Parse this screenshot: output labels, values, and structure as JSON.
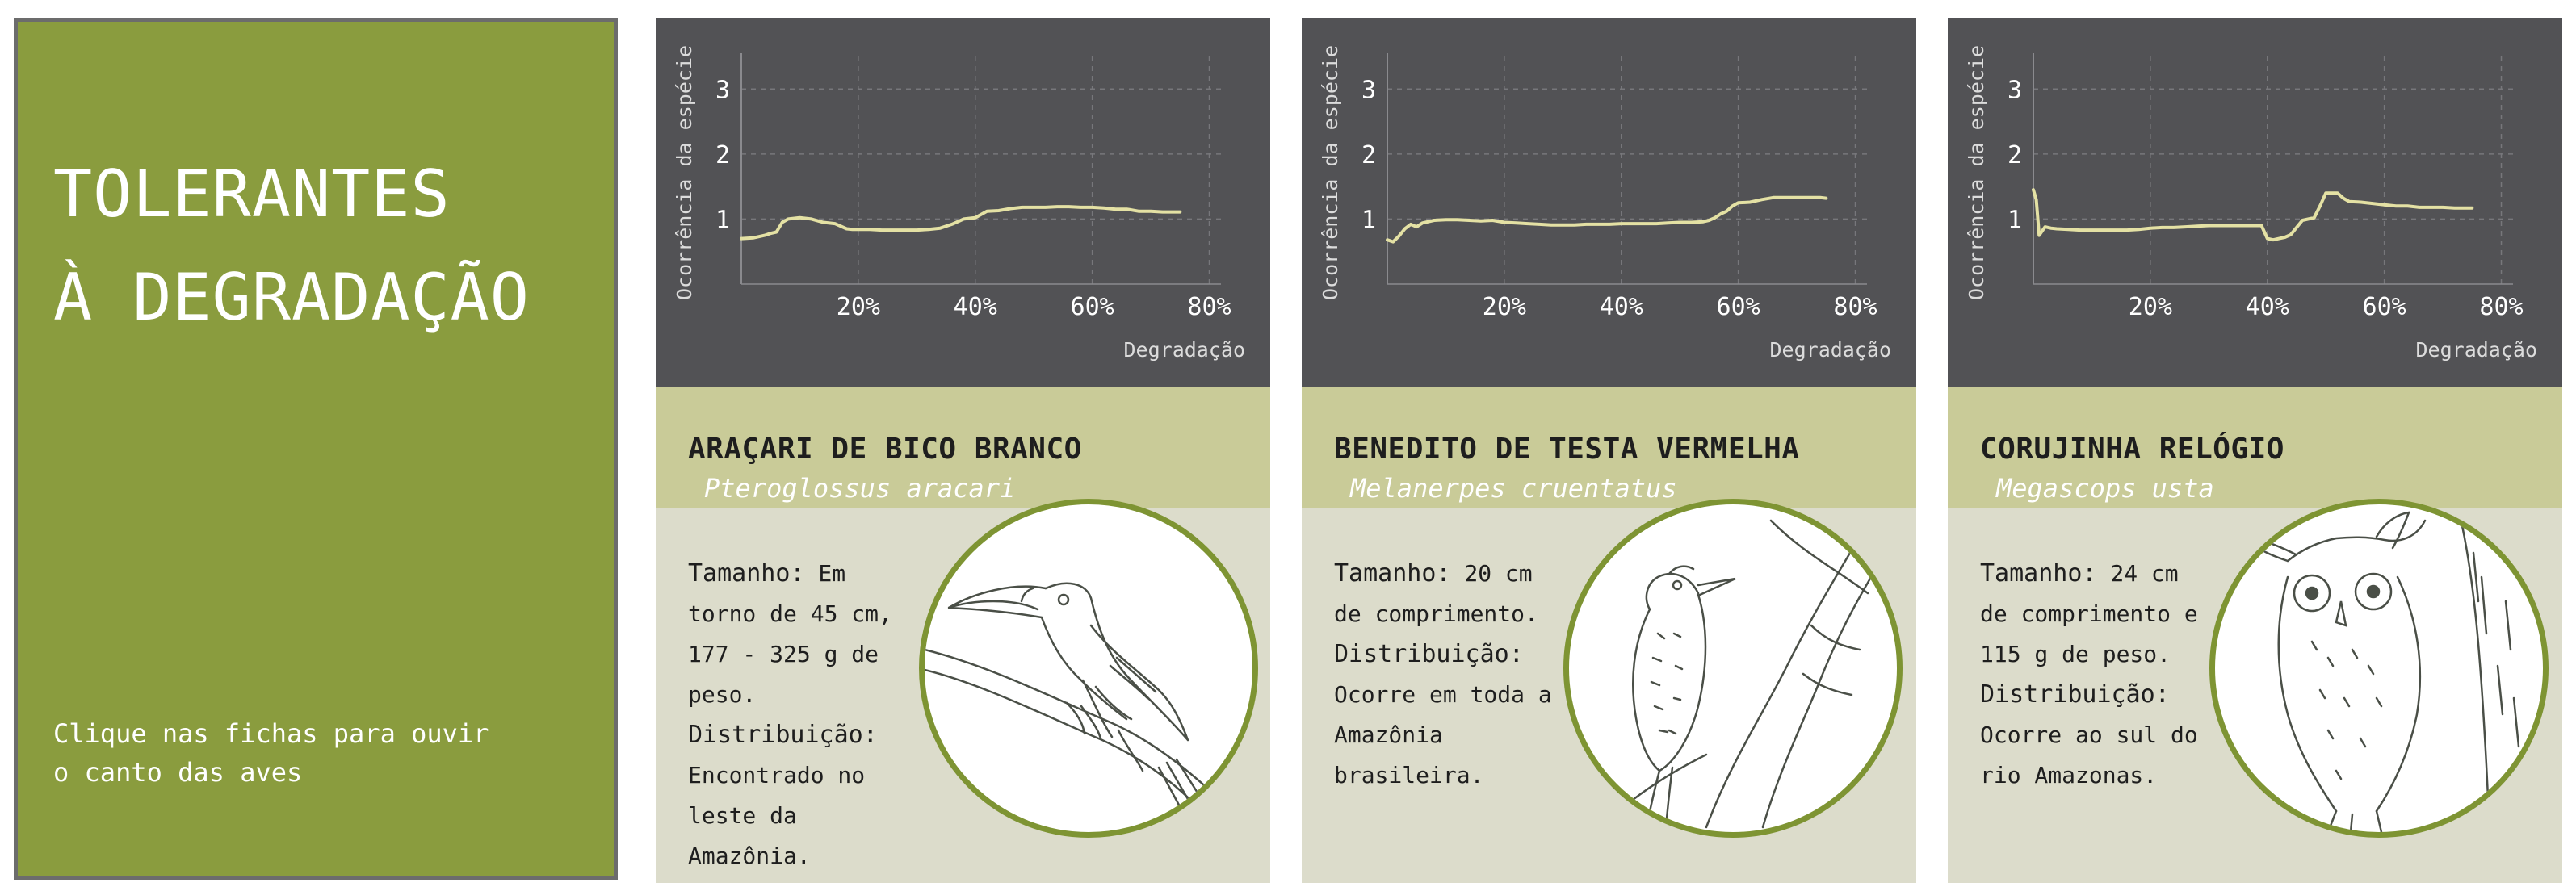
{
  "intro": {
    "title_line1": "TOLERANTES",
    "title_line2": "À DEGRADAÇÃO",
    "hint_line1": "Clique nas fichas para ouvir",
    "hint_line2": "o canto das aves"
  },
  "colors": {
    "intro_bg": "#8a9c3e",
    "chart_bg": "#525255",
    "line": "#e4e1a4",
    "name_band": "#c9cb98",
    "info_bg": "#dcdccb",
    "circle_border": "#7e9433"
  },
  "cards": [
    {
      "common_name": "ARAÇARI DE BICO BRANCO",
      "scientific_name": "Pteroglossus aracari",
      "size_label": "Tamanho:",
      "size_text": "Em torno de 45 cm, 177 - 325 g de peso.",
      "distribution_label": "Distribuição:",
      "distribution_text": "Encontrado no leste da Amazônia.",
      "illustration": "toucan-drawing"
    },
    {
      "common_name": "BENEDITO DE TESTA VERMELHA",
      "scientific_name": "Melanerpes cruentatus",
      "size_label": "Tamanho:",
      "size_text": "20 cm de comprimento.",
      "distribution_label": "Distribuição:",
      "distribution_text": "Ocorre em toda a Amazônia brasileira.",
      "illustration": "woodpecker-drawing"
    },
    {
      "common_name": "CORUJINHA RELÓGIO",
      "scientific_name": "Megascops usta",
      "size_label": "Tamanho:",
      "size_text": "24 cm de comprimento e 115 g de peso.",
      "distribution_label": "Distribuição:",
      "distribution_text": "Ocorre ao sul do rio Amazonas.",
      "illustration": "owl-drawing"
    }
  ],
  "chart_data": [
    {
      "type": "line",
      "xlabel": "Degradação",
      "ylabel": "Ocorrência da espécie",
      "x_ticks": [
        "20%",
        "40%",
        "60%",
        "80%"
      ],
      "y_ticks": [
        "1",
        "2",
        "3"
      ],
      "xlim": [
        0,
        0.82
      ],
      "ylim": [
        0,
        3.5
      ],
      "grid": true,
      "x": [
        0,
        0.02,
        0.04,
        0.05,
        0.06,
        0.07,
        0.08,
        0.1,
        0.12,
        0.14,
        0.16,
        0.18,
        0.19,
        0.2,
        0.22,
        0.24,
        0.26,
        0.28,
        0.3,
        0.32,
        0.34,
        0.36,
        0.38,
        0.4,
        0.42,
        0.44,
        0.46,
        0.48,
        0.5,
        0.52,
        0.54,
        0.56,
        0.58,
        0.6,
        0.62,
        0.64,
        0.66,
        0.68,
        0.7,
        0.72,
        0.74,
        0.75
      ],
      "y": [
        0.7,
        0.71,
        0.75,
        0.78,
        0.8,
        0.95,
        1.0,
        1.02,
        1.0,
        0.95,
        0.93,
        0.85,
        0.84,
        0.84,
        0.84,
        0.83,
        0.83,
        0.83,
        0.83,
        0.84,
        0.86,
        0.92,
        1.0,
        1.02,
        1.12,
        1.13,
        1.16,
        1.18,
        1.18,
        1.18,
        1.19,
        1.19,
        1.18,
        1.18,
        1.17,
        1.15,
        1.15,
        1.12,
        1.12,
        1.11,
        1.11,
        1.11
      ]
    },
    {
      "type": "line",
      "xlabel": "Degradação",
      "ylabel": "Ocorrência da espécie",
      "x_ticks": [
        "20%",
        "40%",
        "60%",
        "80%"
      ],
      "y_ticks": [
        "1",
        "2",
        "3"
      ],
      "xlim": [
        0,
        0.82
      ],
      "ylim": [
        0,
        3.5
      ],
      "grid": true,
      "x": [
        0,
        0.01,
        0.02,
        0.03,
        0.04,
        0.05,
        0.06,
        0.08,
        0.1,
        0.12,
        0.14,
        0.16,
        0.18,
        0.2,
        0.22,
        0.24,
        0.26,
        0.28,
        0.3,
        0.32,
        0.34,
        0.36,
        0.38,
        0.4,
        0.42,
        0.44,
        0.46,
        0.48,
        0.5,
        0.52,
        0.54,
        0.55,
        0.56,
        0.57,
        0.58,
        0.59,
        0.6,
        0.62,
        0.64,
        0.66,
        0.68,
        0.7,
        0.72,
        0.74,
        0.75
      ],
      "y": [
        0.68,
        0.65,
        0.74,
        0.85,
        0.92,
        0.88,
        0.94,
        0.98,
        0.99,
        0.99,
        0.98,
        0.97,
        0.98,
        0.95,
        0.94,
        0.93,
        0.92,
        0.91,
        0.91,
        0.91,
        0.92,
        0.92,
        0.92,
        0.93,
        0.93,
        0.93,
        0.93,
        0.94,
        0.95,
        0.95,
        0.96,
        0.98,
        1.02,
        1.08,
        1.12,
        1.2,
        1.25,
        1.26,
        1.3,
        1.33,
        1.33,
        1.33,
        1.33,
        1.33,
        1.32
      ]
    },
    {
      "type": "line",
      "xlabel": "Degradação",
      "ylabel": "Ocorrência da espécie",
      "x_ticks": [
        "20%",
        "40%",
        "60%",
        "80%"
      ],
      "y_ticks": [
        "1",
        "2",
        "3"
      ],
      "xlim": [
        0,
        0.82
      ],
      "ylim": [
        0,
        3.5
      ],
      "grid": true,
      "x": [
        0,
        0.005,
        0.01,
        0.02,
        0.03,
        0.04,
        0.06,
        0.08,
        0.1,
        0.12,
        0.14,
        0.16,
        0.18,
        0.2,
        0.22,
        0.24,
        0.26,
        0.28,
        0.3,
        0.32,
        0.34,
        0.36,
        0.38,
        0.39,
        0.4,
        0.41,
        0.42,
        0.43,
        0.44,
        0.46,
        0.48,
        0.49,
        0.5,
        0.51,
        0.52,
        0.53,
        0.54,
        0.56,
        0.58,
        0.6,
        0.62,
        0.64,
        0.66,
        0.68,
        0.7,
        0.72,
        0.74,
        0.75
      ],
      "y": [
        1.45,
        1.3,
        0.75,
        0.88,
        0.86,
        0.85,
        0.84,
        0.83,
        0.83,
        0.83,
        0.83,
        0.83,
        0.84,
        0.86,
        0.87,
        0.87,
        0.88,
        0.89,
        0.9,
        0.9,
        0.9,
        0.9,
        0.9,
        0.9,
        0.7,
        0.68,
        0.7,
        0.72,
        0.76,
        0.98,
        1.02,
        1.2,
        1.4,
        1.4,
        1.4,
        1.32,
        1.27,
        1.26,
        1.24,
        1.22,
        1.2,
        1.2,
        1.18,
        1.18,
        1.18,
        1.17,
        1.17,
        1.17
      ]
    }
  ]
}
